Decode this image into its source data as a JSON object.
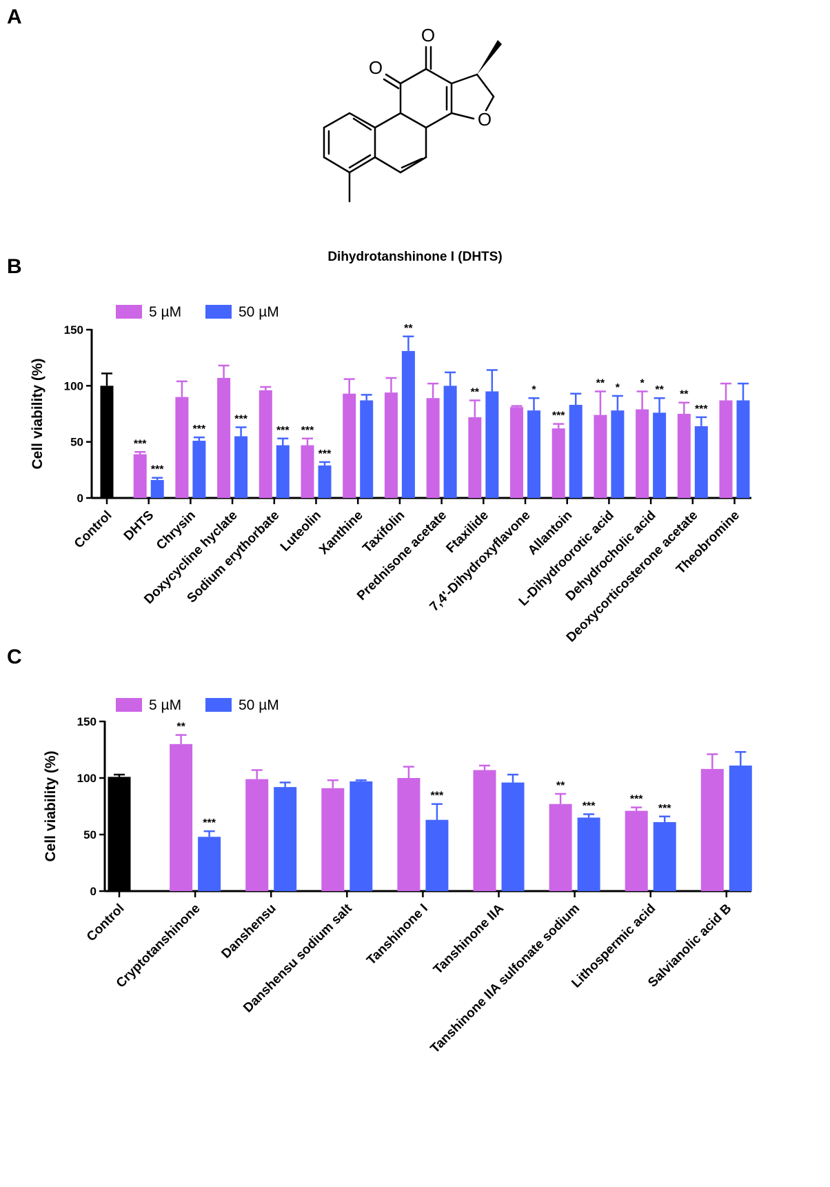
{
  "panels": {
    "a": "A",
    "b": "B",
    "c": "C"
  },
  "molecule": {
    "caption": "Dihydrotanshinone I (DHTS)",
    "atoms": {
      "o1": "O",
      "o2": "O",
      "o3": "O"
    }
  },
  "colors": {
    "control": "#000000",
    "s5": "#cc66e6",
    "s50": "#4466ff"
  },
  "chart_data": [
    {
      "type": "bar",
      "panel": "B",
      "ylabel": "Cell viability (%)",
      "ylim": [
        0,
        150
      ],
      "yticks": [
        0,
        50,
        100,
        150
      ],
      "legend": [
        "5 µM",
        "50 µM"
      ],
      "control": {
        "label": "Control",
        "value": 100,
        "err": 11
      },
      "categories": [
        "DHTS",
        "Chrysin",
        "Doxycycline hyclate",
        "Sodium erythorbate",
        "Luteolin",
        "Xanthine",
        "Taxifolin",
        "Prednisone acetate",
        "Ftaxilide",
        "7,4'-Dihydroxyflavone",
        "Allantoin",
        "L-Dihydroorotic acid",
        "Dehydrocholic acid",
        "Deoxycorticosterone acetate",
        "Theobromine"
      ],
      "series": [
        {
          "name": "5 µM",
          "values": [
            39,
            90,
            107,
            96,
            47,
            93,
            94,
            89,
            72,
            81,
            62,
            74,
            79,
            75,
            87
          ],
          "errors": [
            2,
            14,
            11,
            3,
            6,
            13,
            13,
            13,
            15,
            1,
            4,
            21,
            16,
            10,
            15
          ],
          "sig": [
            "***",
            "",
            "",
            "",
            "***",
            "",
            "",
            "",
            "**",
            "",
            "***",
            "**",
            "*",
            "**",
            ""
          ]
        },
        {
          "name": "50 µM",
          "values": [
            16,
            51,
            55,
            47,
            29,
            87,
            131,
            100,
            95,
            78,
            83,
            78,
            76,
            64,
            87
          ],
          "errors": [
            2,
            3,
            8,
            6,
            3,
            5,
            13,
            12,
            19,
            11,
            10,
            13,
            13,
            8,
            15
          ],
          "sig": [
            "***",
            "***",
            "***",
            "***",
            "***",
            "",
            "**",
            "",
            "",
            "*",
            "",
            "*",
            "**",
            "***",
            ""
          ]
        }
      ]
    },
    {
      "type": "bar",
      "panel": "C",
      "ylabel": "Cell viability (%)",
      "ylim": [
        0,
        150
      ],
      "yticks": [
        0,
        50,
        100,
        150
      ],
      "legend": [
        "5 µM",
        "50 µM"
      ],
      "control": {
        "label": "Control",
        "value": 101,
        "err": 2
      },
      "categories": [
        "Cryptotanshinone",
        "Danshensu",
        "Danshensu sodium salt",
        "Tanshinone I",
        "Tanshinone IIA",
        "Tanshinone IIA sulfonate sodium",
        "Lithospermic acid",
        "Salvianolic acid B"
      ],
      "series": [
        {
          "name": "5 µM",
          "values": [
            130,
            99,
            91,
            100,
            107,
            77,
            71,
            108
          ],
          "errors": [
            8,
            8,
            7,
            10,
            4,
            9,
            3,
            13
          ],
          "sig": [
            "**",
            "",
            "",
            "",
            "",
            "**",
            "***",
            ""
          ]
        },
        {
          "name": "50 µM",
          "values": [
            48,
            92,
            97,
            63,
            96,
            65,
            61,
            111
          ],
          "errors": [
            5,
            4,
            1,
            14,
            7,
            3,
            5,
            12
          ],
          "sig": [
            "***",
            "",
            "",
            "***",
            "",
            "***",
            "***",
            ""
          ]
        }
      ]
    }
  ]
}
